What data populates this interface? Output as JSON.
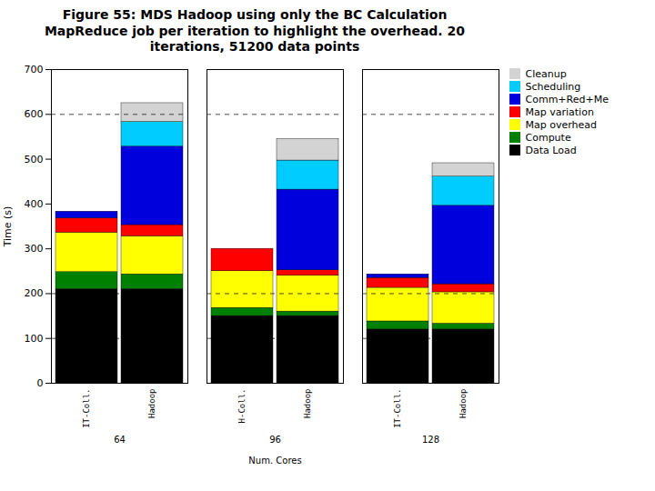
{
  "chart_data": {
    "type": "bar",
    "stacked": true,
    "title": "Figure 55: MDS Hadoop using only the BC Calculation\nMapReduce job per iteration to highlight the overhead. 20\niterations, 51200 data points",
    "xlabel": "Num. Cores",
    "ylabel": "Time (s)",
    "groups": [
      {
        "label": "64",
        "categories": [
          "IT-Coll.",
          "Hadoop"
        ]
      },
      {
        "label": "96",
        "categories": [
          "H-Coll.",
          "Hadoop"
        ]
      },
      {
        "label": "128",
        "categories": [
          "IT-Coll.",
          "Hadoop"
        ]
      }
    ],
    "series": [
      {
        "name": "Data Load",
        "color": "#000000",
        "values": [
          210,
          210,
          150,
          150,
          120,
          120
        ]
      },
      {
        "name": "Compute",
        "color": "#008000",
        "values": [
          38,
          33,
          18,
          10,
          18,
          13
        ]
      },
      {
        "name": "Map overhead",
        "color": "#ffff00",
        "values": [
          88,
          85,
          82,
          80,
          75,
          70
        ]
      },
      {
        "name": "Map variation",
        "color": "#ff0000",
        "values": [
          32,
          25,
          50,
          12,
          22,
          18
        ]
      },
      {
        "name": "Comm+Red+Me",
        "color": "#0000dd",
        "values": [
          15,
          175,
          0,
          180,
          8,
          175
        ]
      },
      {
        "name": "Scheduling",
        "color": "#00ccff",
        "values": [
          0,
          55,
          0,
          65,
          0,
          65
        ]
      },
      {
        "name": "Cleanup",
        "color": "#d3d3d3",
        "values": [
          0,
          42,
          0,
          48,
          0,
          30
        ]
      }
    ],
    "reference_lines": [
      100,
      200,
      600
    ],
    "ylim": [
      0,
      700
    ],
    "yticks": [
      0,
      100,
      200,
      300,
      400,
      500,
      600,
      700
    ],
    "grid": false,
    "legend": "right"
  }
}
